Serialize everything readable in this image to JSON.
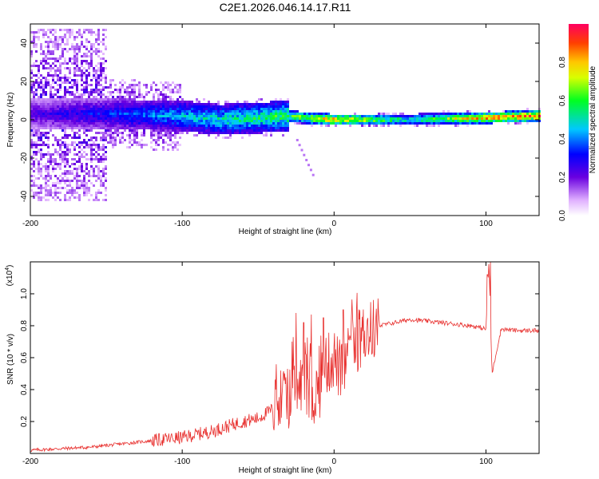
{
  "title": "C2E1.2026.046.14.17.R11",
  "colors": {
    "snr_line": "#e8312f",
    "axis": "#000000",
    "background": "#ffffff"
  },
  "chart_data": [
    {
      "type": "heatmap",
      "name": "spectrogram",
      "xlabel": "Height of straight line (km)",
      "ylabel": "Frequency (Hz)",
      "xlim": [
        -200,
        135
      ],
      "ylim": [
        -50,
        50
      ],
      "xticks": [
        "-200",
        "-100",
        "0",
        "100"
      ],
      "xtick_values": [
        -200,
        -100,
        0,
        100
      ],
      "yticks": [
        "-40",
        "-20",
        "0",
        "20",
        "40"
      ],
      "ytick_values": [
        -40,
        -20,
        0,
        20,
        40
      ],
      "colorbar": {
        "label": "Normalized spectral amplitude",
        "range": [
          0.0,
          1.0
        ],
        "ticks": [
          "0.0",
          "0.2",
          "0.4",
          "0.6",
          "0.8"
        ],
        "tick_values": [
          0.0,
          0.2,
          0.4,
          0.6,
          0.8
        ]
      },
      "ridge": {
        "x": [
          -200,
          -150,
          -100,
          -75,
          -50,
          -30,
          -20,
          0,
          50,
          100,
          135
        ],
        "center_freq": [
          3,
          3,
          2,
          0,
          1,
          2,
          1,
          0,
          0,
          1,
          2
        ],
        "peak_amplitude": [
          0.25,
          0.35,
          0.5,
          0.55,
          0.6,
          0.65,
          0.75,
          0.9,
          0.55,
          0.9,
          0.95
        ]
      }
    },
    {
      "type": "line",
      "name": "snr",
      "xlabel": "Height of straight line (km)",
      "ylabel": "SNR (10 * v/v)",
      "y_multiplier_label": "(x10",
      "y_multiplier_exp": "4",
      "y_multiplier_close": ")",
      "xlim": [
        -200,
        135
      ],
      "ylim": [
        0.0,
        1.2
      ],
      "xticks": [
        "-200",
        "-100",
        "0",
        "100"
      ],
      "xtick_values": [
        -200,
        -100,
        0,
        100
      ],
      "yticks": [
        "0.2",
        "0.4",
        "0.6",
        "0.8",
        "1.0"
      ],
      "ytick_values": [
        0.2,
        0.4,
        0.6,
        0.8,
        1.0
      ],
      "series": [
        {
          "name": "SNR",
          "x": [
            -200,
            -180,
            -160,
            -150,
            -140,
            -120,
            -100,
            -90,
            -80,
            -70,
            -60,
            -50,
            -40,
            -30,
            -25,
            -20,
            -15,
            -10,
            -5,
            0,
            5,
            10,
            15,
            20,
            30,
            40,
            50,
            60,
            70,
            80,
            90,
            95,
            100,
            102,
            104,
            110,
            120,
            135
          ],
          "y": [
            0.02,
            0.03,
            0.04,
            0.05,
            0.06,
            0.08,
            0.1,
            0.12,
            0.14,
            0.17,
            0.2,
            0.22,
            0.28,
            0.35,
            0.4,
            0.45,
            0.35,
            0.4,
            0.55,
            0.6,
            0.5,
            0.65,
            0.7,
            0.75,
            0.8,
            0.82,
            0.84,
            0.83,
            0.82,
            0.81,
            0.8,
            0.79,
            0.78,
            1.2,
            0.5,
            0.78,
            0.77,
            0.77
          ]
        }
      ],
      "spikes": {
        "x": [
          -25,
          -20,
          -15,
          -7,
          6,
          101,
          103
        ],
        "y": [
          0.88,
          0.82,
          0.87,
          0.85,
          0.9,
          1.12,
          1.22
        ]
      }
    }
  ]
}
